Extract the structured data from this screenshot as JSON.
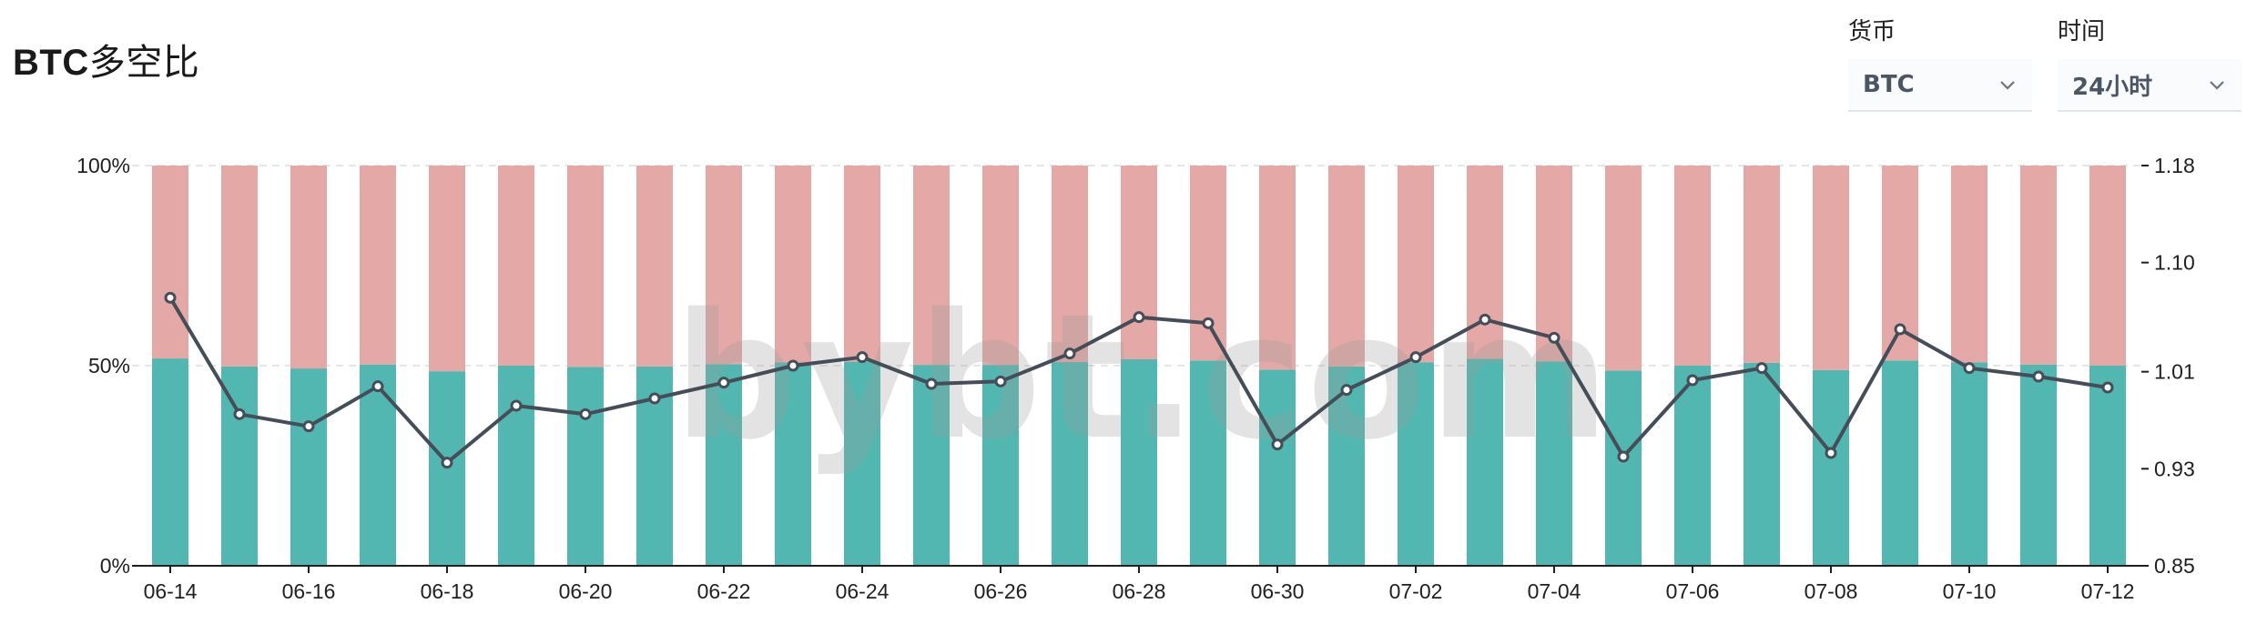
{
  "header": {
    "title_prefix": "BTC",
    "title_suffix": "多空比"
  },
  "filters": {
    "currency": {
      "label": "货币",
      "value": "BTC"
    },
    "time": {
      "label": "时间",
      "value": "24小时"
    }
  },
  "watermark": "bybt.com",
  "colors": {
    "long": "#52b7b1",
    "short": "#e4a9a7",
    "line": "#454d58",
    "grid": "#e6e6e6"
  },
  "chart_data": {
    "type": "bar",
    "stacked": true,
    "categories": [
      "06-14",
      "06-15",
      "06-16",
      "06-17",
      "06-18",
      "06-19",
      "06-20",
      "06-21",
      "06-22",
      "06-23",
      "06-24",
      "06-25",
      "06-26",
      "06-27",
      "06-28",
      "06-29",
      "06-30",
      "07-01",
      "07-02",
      "07-03",
      "07-04",
      "07-05",
      "07-06",
      "07-07",
      "07-08",
      "07-09",
      "07-10",
      "07-11",
      "07-12"
    ],
    "x_tick_labels": [
      "06-14",
      "06-16",
      "06-18",
      "06-20",
      "06-22",
      "06-24",
      "06-26",
      "06-28",
      "06-30",
      "07-02",
      "07-04",
      "07-06",
      "07-08",
      "07-10",
      "07-12"
    ],
    "series": [
      {
        "values": [
          51.8,
          49.8,
          49.3,
          50.3,
          48.6,
          50.0,
          49.7,
          49.8,
          50.4,
          50.8,
          51.0,
          50.2,
          50.2,
          50.9,
          51.6,
          51.3,
          49.0,
          49.8,
          50.8,
          51.7,
          51.1,
          48.8,
          50.0,
          50.7,
          48.9,
          51.3,
          50.8,
          50.3,
          50.0
        ]
      },
      {
        "values": [
          48.2,
          50.2,
          50.7,
          49.7,
          51.4,
          50.0,
          50.3,
          50.2,
          49.6,
          49.2,
          49.0,
          49.8,
          49.8,
          49.1,
          48.4,
          48.7,
          51.0,
          50.2,
          49.2,
          48.3,
          48.9,
          51.2,
          50.0,
          49.3,
          51.1,
          48.7,
          49.2,
          49.7,
          50.0
        ]
      },
      {
        "axis": "right",
        "type": "line",
        "values": [
          1.071,
          0.975,
          0.965,
          0.998,
          0.935,
          0.982,
          0.975,
          0.988,
          1.001,
          1.015,
          1.022,
          1.0,
          1.002,
          1.025,
          1.055,
          1.05,
          0.95,
          0.995,
          1.022,
          1.053,
          1.038,
          0.94,
          1.003,
          1.013,
          0.943,
          1.045,
          1.013,
          1.006,
          0.997
        ]
      }
    ],
    "left_axis": {
      "ticks": [
        "0%",
        "50%",
        "100%"
      ],
      "ylim": [
        0,
        100
      ]
    },
    "right_axis": {
      "ticks": [
        "0.85",
        "0.93",
        "1.01",
        "1.10",
        "1.18"
      ],
      "ylim": [
        0.85,
        1.18
      ]
    },
    "grid": "horizontal-dashed"
  }
}
